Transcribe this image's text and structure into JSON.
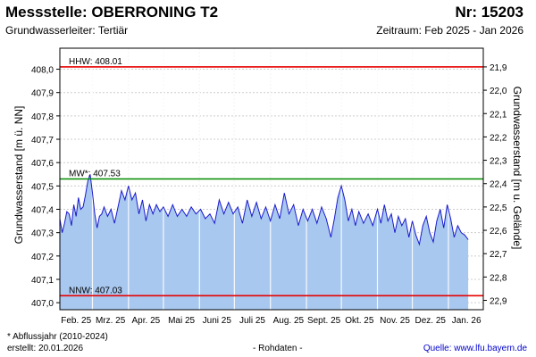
{
  "header": {
    "title": "Messstelle: OBERRONING T2",
    "number": "Nr: 15203",
    "subtitle": "Grundwasserleiter: Tertiär",
    "period": "Zeitraum: Feb 2025 - Jan 2026"
  },
  "footer": {
    "footnote": "* Abflussjahr (2010-2024)",
    "created": "erstellt:  20.01.2026",
    "raw": "- Rohdaten -",
    "source": "Quelle:  www.lfu.bayern.de"
  },
  "colors": {
    "fill": "#a8c8f0",
    "line": "#1a1acc",
    "hhw": "#e60000",
    "nnw": "#e60000",
    "mw": "#008c00",
    "grid": "#cccccc",
    "month_line": "#ffffff"
  },
  "chart_data": {
    "type": "area",
    "ylabel": "Grundwasserstand [m ü. NN]",
    "ylabel_right": "Grundwasserstand [m u. Gelände]",
    "ylim": [
      406.97,
      408.09
    ],
    "yticks": [
      407.0,
      407.1,
      407.2,
      407.3,
      407.4,
      407.5,
      407.6,
      407.7,
      407.8,
      407.9,
      408.0
    ],
    "ytick_labels": [
      "407,0",
      "407,1",
      "407,2",
      "407,3",
      "407,4",
      "407,5",
      "407,6",
      "407,7",
      "407,8",
      "407,9",
      "408,0"
    ],
    "right_ticks": [
      21.9,
      22.0,
      22.1,
      22.2,
      22.3,
      22.4,
      22.5,
      22.6,
      22.7,
      22.8,
      22.9
    ],
    "right_tick_labels": [
      "21,9",
      "22,0",
      "22,1",
      "22,2",
      "22,3",
      "22,4",
      "22,5",
      "22,6",
      "22,7",
      "22,8",
      "22,9"
    ],
    "right_offset": 429.91,
    "xlim": [
      "2025-02-01",
      "2026-01-31"
    ],
    "x_labels": [
      "Feb. 25",
      "Mrz. 25",
      "Apr. 25",
      "Mai 25",
      "Juni 25",
      "Juli 25",
      "Aug. 25",
      "Sept. 25",
      "Okt. 25",
      "Nov. 25",
      "Dez. 25",
      "Jan. 26"
    ],
    "grid": true,
    "reference_lines": [
      {
        "label": "HHW: 408.01",
        "value": 408.01,
        "kind": "hhw"
      },
      {
        "label": "MW*: 407.53",
        "value": 407.53,
        "kind": "mw"
      },
      {
        "label": "NNW: 407.03",
        "value": 407.03,
        "kind": "nnw"
      }
    ],
    "series": [
      {
        "values": [
          [
            "2025-02-01",
            407.36
          ],
          [
            "2025-02-03",
            407.3
          ],
          [
            "2025-02-05",
            407.34
          ],
          [
            "2025-02-07",
            407.39
          ],
          [
            "2025-02-09",
            407.38
          ],
          [
            "2025-02-11",
            407.33
          ],
          [
            "2025-02-13",
            407.42
          ],
          [
            "2025-02-15",
            407.37
          ],
          [
            "2025-02-17",
            407.45
          ],
          [
            "2025-02-19",
            407.4
          ],
          [
            "2025-02-21",
            407.41
          ],
          [
            "2025-02-23",
            407.46
          ],
          [
            "2025-02-25",
            407.52
          ],
          [
            "2025-02-27",
            407.55
          ],
          [
            "2025-03-01",
            407.47
          ],
          [
            "2025-03-03",
            407.38
          ],
          [
            "2025-03-05",
            407.32
          ],
          [
            "2025-03-07",
            407.37
          ],
          [
            "2025-03-09",
            407.38
          ],
          [
            "2025-03-11",
            407.41
          ],
          [
            "2025-03-14",
            407.37
          ],
          [
            "2025-03-17",
            407.4
          ],
          [
            "2025-03-20",
            407.34
          ],
          [
            "2025-03-23",
            407.41
          ],
          [
            "2025-03-26",
            407.48
          ],
          [
            "2025-03-29",
            407.44
          ],
          [
            "2025-04-01",
            407.5
          ],
          [
            "2025-04-04",
            407.44
          ],
          [
            "2025-04-07",
            407.47
          ],
          [
            "2025-04-10",
            407.38
          ],
          [
            "2025-04-13",
            407.44
          ],
          [
            "2025-04-16",
            407.35
          ],
          [
            "2025-04-19",
            407.42
          ],
          [
            "2025-04-22",
            407.38
          ],
          [
            "2025-04-25",
            407.42
          ],
          [
            "2025-04-28",
            407.39
          ],
          [
            "2025-05-01",
            407.41
          ],
          [
            "2025-05-05",
            407.37
          ],
          [
            "2025-05-09",
            407.42
          ],
          [
            "2025-05-13",
            407.37
          ],
          [
            "2025-05-17",
            407.4
          ],
          [
            "2025-05-21",
            407.37
          ],
          [
            "2025-05-25",
            407.41
          ],
          [
            "2025-05-29",
            407.38
          ],
          [
            "2025-06-02",
            407.4
          ],
          [
            "2025-06-06",
            407.36
          ],
          [
            "2025-06-10",
            407.38
          ],
          [
            "2025-06-14",
            407.34
          ],
          [
            "2025-06-18",
            407.44
          ],
          [
            "2025-06-22",
            407.38
          ],
          [
            "2025-06-26",
            407.43
          ],
          [
            "2025-06-30",
            407.38
          ],
          [
            "2025-07-04",
            407.41
          ],
          [
            "2025-07-08",
            407.34
          ],
          [
            "2025-07-12",
            407.44
          ],
          [
            "2025-07-16",
            407.37
          ],
          [
            "2025-07-20",
            407.43
          ],
          [
            "2025-07-24",
            407.36
          ],
          [
            "2025-07-28",
            407.41
          ],
          [
            "2025-08-01",
            407.35
          ],
          [
            "2025-08-05",
            407.42
          ],
          [
            "2025-08-09",
            407.36
          ],
          [
            "2025-08-13",
            407.47
          ],
          [
            "2025-08-17",
            407.38
          ],
          [
            "2025-08-21",
            407.42
          ],
          [
            "2025-08-25",
            407.33
          ],
          [
            "2025-08-29",
            407.4
          ],
          [
            "2025-09-02",
            407.35
          ],
          [
            "2025-09-06",
            407.4
          ],
          [
            "2025-09-10",
            407.34
          ],
          [
            "2025-09-14",
            407.41
          ],
          [
            "2025-09-18",
            407.36
          ],
          [
            "2025-09-22",
            407.28
          ],
          [
            "2025-09-25",
            407.36
          ],
          [
            "2025-09-28",
            407.45
          ],
          [
            "2025-10-01",
            407.5
          ],
          [
            "2025-10-04",
            407.44
          ],
          [
            "2025-10-07",
            407.35
          ],
          [
            "2025-10-10",
            407.4
          ],
          [
            "2025-10-13",
            407.33
          ],
          [
            "2025-10-16",
            407.39
          ],
          [
            "2025-10-20",
            407.34
          ],
          [
            "2025-10-24",
            407.38
          ],
          [
            "2025-10-28",
            407.33
          ],
          [
            "2025-11-01",
            407.4
          ],
          [
            "2025-11-04",
            407.34
          ],
          [
            "2025-11-07",
            407.42
          ],
          [
            "2025-11-10",
            407.35
          ],
          [
            "2025-11-13",
            407.38
          ],
          [
            "2025-11-16",
            407.3
          ],
          [
            "2025-11-19",
            407.37
          ],
          [
            "2025-11-22",
            407.33
          ],
          [
            "2025-11-25",
            407.36
          ],
          [
            "2025-11-28",
            407.28
          ],
          [
            "2025-12-01",
            407.35
          ],
          [
            "2025-12-04",
            407.29
          ],
          [
            "2025-12-07",
            407.25
          ],
          [
            "2025-12-10",
            407.33
          ],
          [
            "2025-12-13",
            407.37
          ],
          [
            "2025-12-16",
            407.3
          ],
          [
            "2025-12-19",
            407.26
          ],
          [
            "2025-12-22",
            407.35
          ],
          [
            "2025-12-25",
            407.4
          ],
          [
            "2025-12-28",
            407.32
          ],
          [
            "2025-12-31",
            407.42
          ],
          [
            "2026-01-03",
            407.36
          ],
          [
            "2026-01-06",
            407.28
          ],
          [
            "2026-01-09",
            407.33
          ],
          [
            "2026-01-12",
            407.3
          ],
          [
            "2026-01-15",
            407.29
          ],
          [
            "2026-01-18",
            407.27
          ]
        ]
      }
    ]
  }
}
